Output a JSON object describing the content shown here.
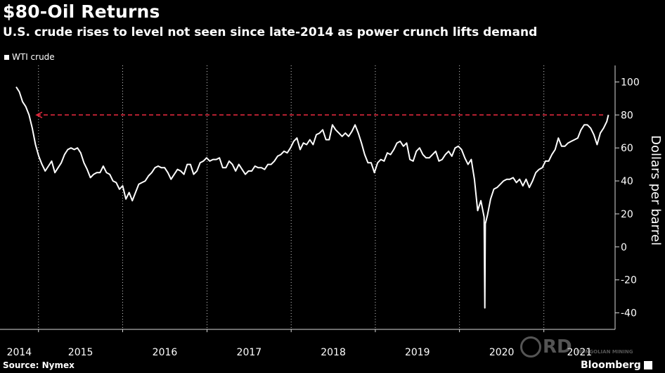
{
  "chart_data": {
    "type": "line",
    "title": "$80-Oil Returns",
    "subtitle": "U.S. crude rises to level not seen since late-2014 as power crunch lifts demand",
    "ylabel": "Dollars per barrel",
    "ylim": [
      -50,
      110
    ],
    "yticks": [
      100,
      80,
      60,
      40,
      20,
      0,
      -20,
      -40
    ],
    "xlabels": [
      "2014",
      "2015",
      "2016",
      "2017",
      "2018",
      "2019",
      "2020",
      "2021"
    ],
    "series": [
      {
        "name": "WTI crude",
        "color": "#ffffff",
        "points": [
          [
            "2014-09-26",
            97
          ],
          [
            "2014-10-10",
            94
          ],
          [
            "2014-10-24",
            88
          ],
          [
            "2014-11-07",
            85
          ],
          [
            "2014-11-21",
            80
          ],
          [
            "2014-12-05",
            72
          ],
          [
            "2014-12-19",
            62
          ],
          [
            "2015-01-02",
            55
          ],
          [
            "2015-01-16",
            50
          ],
          [
            "2015-01-30",
            46
          ],
          [
            "2015-02-13",
            49
          ],
          [
            "2015-02-27",
            52
          ],
          [
            "2015-03-13",
            45
          ],
          [
            "2015-03-27",
            48
          ],
          [
            "2015-04-10",
            51
          ],
          [
            "2015-04-24",
            56
          ],
          [
            "2015-05-08",
            59
          ],
          [
            "2015-05-22",
            60
          ],
          [
            "2015-06-05",
            59
          ],
          [
            "2015-06-19",
            60
          ],
          [
            "2015-07-03",
            57
          ],
          [
            "2015-07-17",
            51
          ],
          [
            "2015-07-31",
            47
          ],
          [
            "2015-08-14",
            42
          ],
          [
            "2015-08-28",
            44
          ],
          [
            "2015-09-11",
            45
          ],
          [
            "2015-09-25",
            45
          ],
          [
            "2015-10-09",
            49
          ],
          [
            "2015-10-23",
            45
          ],
          [
            "2015-11-06",
            44
          ],
          [
            "2015-11-20",
            40
          ],
          [
            "2015-12-04",
            39
          ],
          [
            "2015-12-18",
            35
          ],
          [
            "2016-01-01",
            37
          ],
          [
            "2016-01-15",
            29
          ],
          [
            "2016-01-29",
            33
          ],
          [
            "2016-02-12",
            28
          ],
          [
            "2016-02-26",
            33
          ],
          [
            "2016-03-11",
            38
          ],
          [
            "2016-03-25",
            39
          ],
          [
            "2016-04-08",
            40
          ],
          [
            "2016-04-22",
            43
          ],
          [
            "2016-05-06",
            45
          ],
          [
            "2016-05-20",
            48
          ],
          [
            "2016-06-03",
            49
          ],
          [
            "2016-06-17",
            48
          ],
          [
            "2016-07-01",
            48
          ],
          [
            "2016-07-15",
            45
          ],
          [
            "2016-07-29",
            41
          ],
          [
            "2016-08-12",
            44
          ],
          [
            "2016-08-26",
            47
          ],
          [
            "2016-09-09",
            46
          ],
          [
            "2016-09-23",
            44
          ],
          [
            "2016-10-07",
            50
          ],
          [
            "2016-10-21",
            50
          ],
          [
            "2016-11-04",
            44
          ],
          [
            "2016-11-18",
            46
          ],
          [
            "2016-12-02",
            51
          ],
          [
            "2016-12-16",
            52
          ],
          [
            "2016-12-30",
            54
          ],
          [
            "2017-01-13",
            52
          ],
          [
            "2017-01-27",
            53
          ],
          [
            "2017-02-10",
            53
          ],
          [
            "2017-02-24",
            54
          ],
          [
            "2017-03-10",
            48
          ],
          [
            "2017-03-24",
            48
          ],
          [
            "2017-04-07",
            52
          ],
          [
            "2017-04-21",
            50
          ],
          [
            "2017-05-05",
            46
          ],
          [
            "2017-05-19",
            50
          ],
          [
            "2017-06-02",
            47
          ],
          [
            "2017-06-16",
            44
          ],
          [
            "2017-06-30",
            46
          ],
          [
            "2017-07-14",
            46
          ],
          [
            "2017-07-28",
            49
          ],
          [
            "2017-08-11",
            48
          ],
          [
            "2017-08-25",
            48
          ],
          [
            "2017-09-08",
            47
          ],
          [
            "2017-09-22",
            50
          ],
          [
            "2017-10-06",
            50
          ],
          [
            "2017-10-20",
            52
          ],
          [
            "2017-11-03",
            55
          ],
          [
            "2017-11-17",
            56
          ],
          [
            "2017-12-01",
            58
          ],
          [
            "2017-12-15",
            57
          ],
          [
            "2017-12-29",
            60
          ],
          [
            "2018-01-12",
            64
          ],
          [
            "2018-01-26",
            66
          ],
          [
            "2018-02-09",
            59
          ],
          [
            "2018-02-23",
            63
          ],
          [
            "2018-03-09",
            62
          ],
          [
            "2018-03-23",
            65
          ],
          [
            "2018-04-06",
            62
          ],
          [
            "2018-04-20",
            68
          ],
          [
            "2018-05-04",
            69
          ],
          [
            "2018-05-18",
            71
          ],
          [
            "2018-06-01",
            65
          ],
          [
            "2018-06-15",
            65
          ],
          [
            "2018-06-29",
            74
          ],
          [
            "2018-07-13",
            71
          ],
          [
            "2018-07-27",
            69
          ],
          [
            "2018-08-10",
            67
          ],
          [
            "2018-08-24",
            69
          ],
          [
            "2018-09-07",
            67
          ],
          [
            "2018-09-21",
            70
          ],
          [
            "2018-10-05",
            74
          ],
          [
            "2018-10-19",
            69
          ],
          [
            "2018-11-02",
            63
          ],
          [
            "2018-11-16",
            56
          ],
          [
            "2018-11-30",
            51
          ],
          [
            "2018-12-14",
            51
          ],
          [
            "2018-12-28",
            45
          ],
          [
            "2019-01-11",
            51
          ],
          [
            "2019-01-25",
            53
          ],
          [
            "2019-02-08",
            52
          ],
          [
            "2019-02-22",
            57
          ],
          [
            "2019-03-08",
            56
          ],
          [
            "2019-03-22",
            59
          ],
          [
            "2019-04-05",
            63
          ],
          [
            "2019-04-19",
            64
          ],
          [
            "2019-05-03",
            61
          ],
          [
            "2019-05-17",
            63
          ],
          [
            "2019-05-31",
            53
          ],
          [
            "2019-06-14",
            52
          ],
          [
            "2019-06-28",
            58
          ],
          [
            "2019-07-12",
            60
          ],
          [
            "2019-07-26",
            56
          ],
          [
            "2019-08-09",
            54
          ],
          [
            "2019-08-23",
            54
          ],
          [
            "2019-09-06",
            56
          ],
          [
            "2019-09-20",
            58
          ],
          [
            "2019-10-04",
            52
          ],
          [
            "2019-10-18",
            53
          ],
          [
            "2019-11-01",
            56
          ],
          [
            "2019-11-15",
            58
          ],
          [
            "2019-11-29",
            55
          ],
          [
            "2019-12-13",
            60
          ],
          [
            "2019-12-27",
            61
          ],
          [
            "2020-01-10",
            59
          ],
          [
            "2020-01-24",
            54
          ],
          [
            "2020-02-07",
            50
          ],
          [
            "2020-02-21",
            53
          ],
          [
            "2020-03-06",
            41
          ],
          [
            "2020-03-20",
            22
          ],
          [
            "2020-04-03",
            28
          ],
          [
            "2020-04-17",
            18
          ],
          [
            "2020-04-20",
            -37
          ],
          [
            "2020-04-22",
            14
          ],
          [
            "2020-05-01",
            19
          ],
          [
            "2020-05-15",
            29
          ],
          [
            "2020-05-29",
            35
          ],
          [
            "2020-06-12",
            36
          ],
          [
            "2020-06-26",
            38
          ],
          [
            "2020-07-10",
            40
          ],
          [
            "2020-07-24",
            41
          ],
          [
            "2020-08-07",
            41
          ],
          [
            "2020-08-21",
            42
          ],
          [
            "2020-09-04",
            39
          ],
          [
            "2020-09-18",
            41
          ],
          [
            "2020-10-02",
            37
          ],
          [
            "2020-10-16",
            41
          ],
          [
            "2020-10-30",
            36
          ],
          [
            "2020-11-13",
            40
          ],
          [
            "2020-11-27",
            45
          ],
          [
            "2020-12-11",
            47
          ],
          [
            "2020-12-25",
            48
          ],
          [
            "2021-01-08",
            52
          ],
          [
            "2021-01-22",
            52
          ],
          [
            "2021-02-05",
            56
          ],
          [
            "2021-02-19",
            59
          ],
          [
            "2021-03-05",
            66
          ],
          [
            "2021-03-19",
            61
          ],
          [
            "2021-04-02",
            61
          ],
          [
            "2021-04-16",
            63
          ],
          [
            "2021-04-30",
            64
          ],
          [
            "2021-05-14",
            65
          ],
          [
            "2021-05-28",
            66
          ],
          [
            "2021-06-11",
            71
          ],
          [
            "2021-06-25",
            74
          ],
          [
            "2021-07-09",
            74
          ],
          [
            "2021-07-23",
            72
          ],
          [
            "2021-08-06",
            68
          ],
          [
            "2021-08-20",
            62
          ],
          [
            "2021-09-03",
            69
          ],
          [
            "2021-09-17",
            72
          ],
          [
            "2021-10-01",
            76
          ],
          [
            "2021-10-08",
            80
          ]
        ]
      }
    ],
    "reference_line": {
      "value": 80,
      "style": "dashed",
      "color": "#e0283c",
      "direction": "left-arrow"
    },
    "grid": "vertical-year-dotted",
    "legend_position": "top-left"
  },
  "source_label": "Source: Nymex",
  "brand": "Bloomberg",
  "watermark": {
    "mark": "RD",
    "caption": "MONGOLIAN MINING"
  }
}
